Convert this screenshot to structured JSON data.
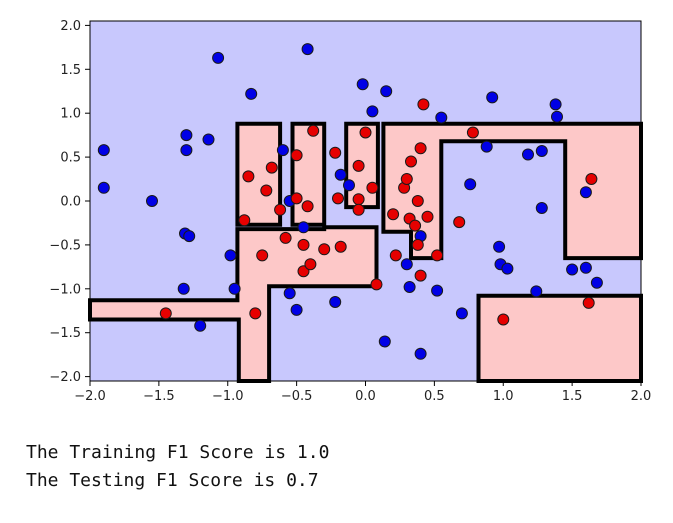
{
  "chart_data": {
    "type": "scatter",
    "title": "",
    "xlabel": "",
    "ylabel": "",
    "xlim": [
      -2.0,
      2.0
    ],
    "ylim": [
      -2.05,
      2.05
    ],
    "xticks": [
      "-2.0",
      "-1.5",
      "-1.0",
      "-0.5",
      "0.0",
      "0.5",
      "1.0",
      "1.5",
      "2.0"
    ],
    "yticks": [
      "2.0",
      "1.5",
      "1.0",
      "0.5",
      "0.0",
      "-0.5",
      "-1.0",
      "-1.5",
      "-2.0"
    ],
    "grid": false,
    "colors": {
      "background_region": "#c8c8fd",
      "decision_region": "#fdc8c8",
      "boundary": "#000000",
      "class_blue": "#0000e6",
      "class_red": "#e60000"
    },
    "decision_regions": [
      [
        [
          -2.0,
          -1.13
        ],
        [
          -0.93,
          -1.13
        ],
        [
          -0.93,
          -0.32
        ],
        [
          -0.3,
          -0.32
        ],
        [
          -0.3,
          -0.3
        ],
        [
          0.08,
          -0.3
        ],
        [
          0.08,
          -0.97
        ],
        [
          -0.7,
          -0.97
        ],
        [
          -0.7,
          -2.05
        ],
        [
          -0.92,
          -2.05
        ],
        [
          -0.92,
          -1.35
        ],
        [
          -2.0,
          -1.35
        ]
      ],
      [
        [
          -0.93,
          0.88
        ],
        [
          -0.62,
          0.88
        ],
        [
          -0.62,
          -0.27
        ],
        [
          -0.93,
          -0.27
        ]
      ],
      [
        [
          -0.53,
          0.88
        ],
        [
          -0.3,
          0.88
        ],
        [
          -0.3,
          -0.27
        ],
        [
          -0.53,
          -0.27
        ]
      ],
      [
        [
          -0.14,
          0.88
        ],
        [
          0.09,
          0.88
        ],
        [
          0.09,
          -0.07
        ],
        [
          -0.14,
          -0.07
        ]
      ],
      [
        [
          0.13,
          0.88
        ],
        [
          2.0,
          0.88
        ],
        [
          2.0,
          -0.65
        ],
        [
          1.45,
          -0.65
        ],
        [
          1.45,
          0.68
        ],
        [
          0.55,
          0.68
        ],
        [
          0.55,
          -0.65
        ],
        [
          0.33,
          -0.65
        ],
        [
          0.33,
          -0.35
        ],
        [
          0.13,
          -0.35
        ]
      ],
      [
        [
          0.82,
          -1.08
        ],
        [
          2.0,
          -1.08
        ],
        [
          2.0,
          -2.05
        ],
        [
          0.82,
          -2.05
        ]
      ]
    ],
    "series": [
      {
        "points": [
          [
            -1.9,
            0.58
          ],
          [
            -1.9,
            0.15
          ],
          [
            -1.55,
            0.0
          ],
          [
            -1.3,
            0.75
          ],
          [
            -1.3,
            0.58
          ],
          [
            -1.31,
            -0.37
          ],
          [
            -1.28,
            -0.4
          ],
          [
            -1.32,
            -1.0
          ],
          [
            -1.2,
            -1.42
          ],
          [
            -1.14,
            0.7
          ],
          [
            -1.07,
            1.63
          ],
          [
            -0.98,
            -0.62
          ],
          [
            -0.95,
            -1.0
          ],
          [
            -0.83,
            1.22
          ],
          [
            -0.6,
            0.58
          ],
          [
            -0.55,
            0.0
          ],
          [
            -0.55,
            -1.05
          ],
          [
            -0.5,
            -1.24
          ],
          [
            -0.42,
            1.73
          ],
          [
            -0.45,
            -0.3
          ],
          [
            -0.22,
            -1.15
          ],
          [
            -0.18,
            0.3
          ],
          [
            -0.12,
            0.18
          ],
          [
            -0.02,
            1.33
          ],
          [
            0.05,
            1.02
          ],
          [
            0.15,
            1.25
          ],
          [
            0.14,
            -1.6
          ],
          [
            0.3,
            -0.72
          ],
          [
            0.32,
            -0.98
          ],
          [
            0.4,
            -1.74
          ],
          [
            0.4,
            -0.4
          ],
          [
            0.52,
            -1.02
          ],
          [
            0.55,
            0.95
          ],
          [
            0.7,
            -1.28
          ],
          [
            0.76,
            0.19
          ],
          [
            0.88,
            0.62
          ],
          [
            0.92,
            1.18
          ],
          [
            0.97,
            -0.52
          ],
          [
            0.98,
            -0.72
          ],
          [
            1.03,
            -0.77
          ],
          [
            1.18,
            0.53
          ],
          [
            1.24,
            -1.03
          ],
          [
            1.28,
            -0.08
          ],
          [
            1.28,
            0.57
          ],
          [
            1.38,
            1.1
          ],
          [
            1.39,
            0.96
          ],
          [
            1.5,
            -0.78
          ],
          [
            1.6,
            0.1
          ],
          [
            1.6,
            -0.76
          ],
          [
            1.68,
            -0.93
          ]
        ]
      },
      {
        "points": [
          [
            -1.45,
            -1.28
          ],
          [
            -0.88,
            -0.22
          ],
          [
            -0.85,
            0.28
          ],
          [
            -0.8,
            -1.28
          ],
          [
            -0.75,
            -0.62
          ],
          [
            -0.72,
            0.12
          ],
          [
            -0.68,
            0.38
          ],
          [
            -0.62,
            -0.1
          ],
          [
            -0.58,
            -0.42
          ],
          [
            -0.5,
            0.52
          ],
          [
            -0.5,
            0.03
          ],
          [
            -0.45,
            -0.5
          ],
          [
            -0.45,
            -0.8
          ],
          [
            -0.42,
            -0.06
          ],
          [
            -0.4,
            -0.72
          ],
          [
            -0.38,
            0.8
          ],
          [
            -0.3,
            -0.55
          ],
          [
            -0.22,
            0.55
          ],
          [
            -0.2,
            0.03
          ],
          [
            -0.18,
            -0.52
          ],
          [
            -0.05,
            0.4
          ],
          [
            -0.05,
            0.02
          ],
          [
            -0.05,
            -0.1
          ],
          [
            0.0,
            0.78
          ],
          [
            0.05,
            0.15
          ],
          [
            0.08,
            -0.95
          ],
          [
            0.2,
            -0.15
          ],
          [
            0.22,
            -0.62
          ],
          [
            0.28,
            0.15
          ],
          [
            0.3,
            0.25
          ],
          [
            0.32,
            -0.2
          ],
          [
            0.33,
            0.45
          ],
          [
            0.36,
            -0.28
          ],
          [
            0.38,
            0.0
          ],
          [
            0.38,
            -0.5
          ],
          [
            0.4,
            -0.85
          ],
          [
            0.4,
            0.6
          ],
          [
            0.42,
            1.1
          ],
          [
            0.45,
            -0.18
          ],
          [
            0.52,
            -0.62
          ],
          [
            0.68,
            -0.24
          ],
          [
            0.78,
            0.78
          ],
          [
            1.0,
            -1.35
          ],
          [
            1.62,
            -1.16
          ],
          [
            1.64,
            0.25
          ]
        ]
      }
    ]
  },
  "output": {
    "training_line": "The Training F1 Score is 1.0",
    "testing_line": "The Testing F1 Score is 0.7"
  }
}
